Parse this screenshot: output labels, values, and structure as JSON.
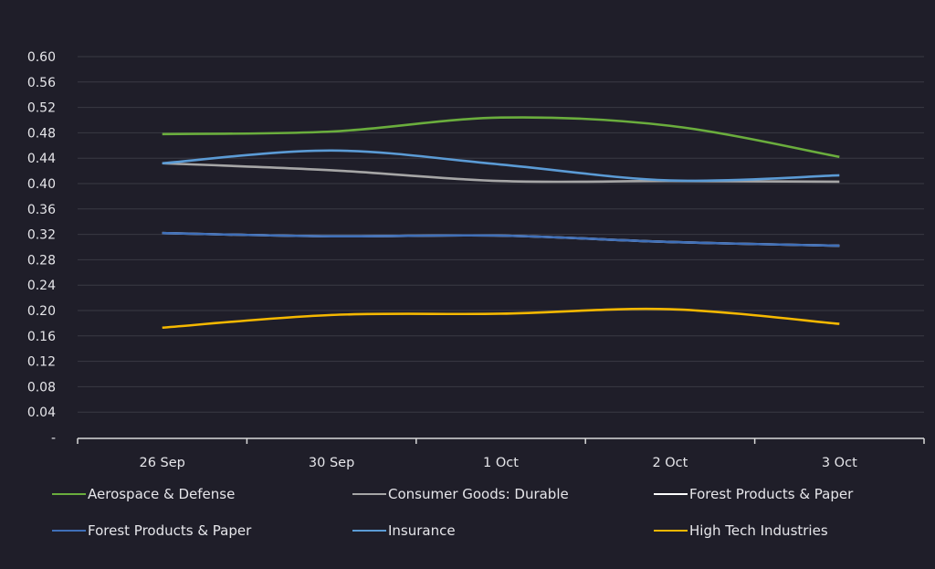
{
  "chart_data": {
    "type": "line",
    "title": "",
    "xlabel": "",
    "ylabel": "",
    "categories": [
      "26 Sep",
      "30 Sep",
      "1 Oct",
      "2 Oct",
      "3 Oct"
    ],
    "ylim": [
      0,
      0.6
    ],
    "yticks": [
      0,
      0.04,
      0.08,
      0.12,
      0.16,
      0.2,
      0.24,
      0.28,
      0.32,
      0.36,
      0.4,
      0.44,
      0.48,
      0.52,
      0.56,
      0.6
    ],
    "ytick_labels": [
      "-",
      "0.04",
      "0.08",
      "0.12",
      "0.16",
      "0.20",
      "0.24",
      "0.28",
      "0.32",
      "0.36",
      "0.40",
      "0.44",
      "0.48",
      "0.52",
      "0.56",
      "0.60"
    ],
    "grid": true,
    "legend_position": "bottom",
    "series": [
      {
        "name": "Aerospace & Defense",
        "color": "#6aad3d",
        "values": [
          0.478,
          0.482,
          0.504,
          0.491,
          0.442
        ]
      },
      {
        "name": "Consumer Goods: Durable",
        "color": "#a6a6a6",
        "values": [
          0.432,
          0.421,
          0.404,
          0.404,
          0.403
        ]
      },
      {
        "name": "Forest Products & Paper",
        "color": "#ffffff",
        "values": [
          0.322,
          0.317,
          0.318,
          0.308,
          0.302
        ]
      },
      {
        "name": "Forest Products & Paper",
        "color": "#3f6fb8",
        "values": [
          0.322,
          0.317,
          0.318,
          0.308,
          0.302
        ]
      },
      {
        "name": "Insurance",
        "color": "#5b9bd5",
        "values": [
          0.432,
          0.452,
          0.43,
          0.405,
          0.413
        ]
      },
      {
        "name": "High Tech Industries",
        "color": "#f5b800",
        "values": [
          0.173,
          0.193,
          0.195,
          0.202,
          0.179
        ]
      }
    ]
  }
}
